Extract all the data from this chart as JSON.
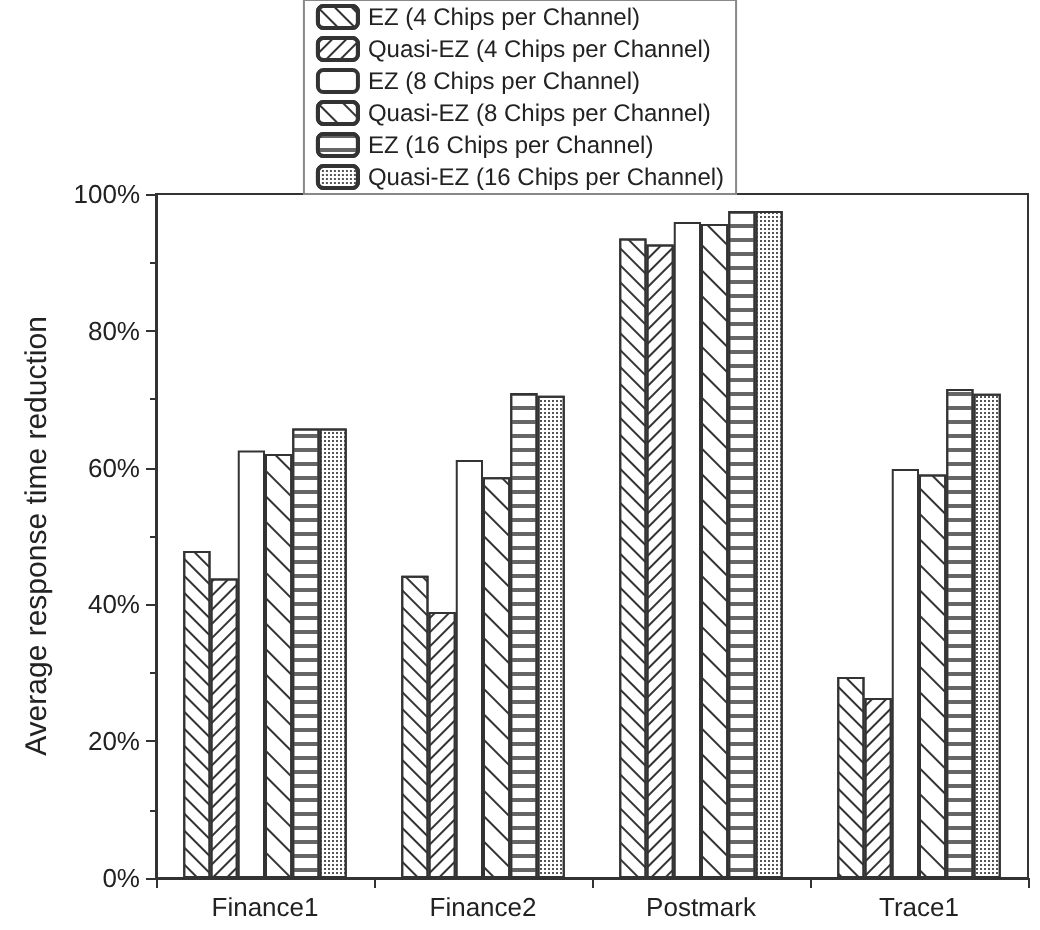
{
  "chart_data": {
    "type": "bar",
    "ylabel": "Average response time reduction",
    "categories": [
      "Finance1",
      "Finance2",
      "Postmark",
      "Trace1"
    ],
    "series": [
      {
        "name": "EZ (4 Chips per Channel)",
        "color": "#ffffff",
        "values": [
          47.8,
          44.2,
          93.5,
          29.4
        ]
      },
      {
        "name": "Quasi-EZ (4 Chips per Channel)",
        "color": "#ffffff",
        "values": [
          43.8,
          38.9,
          92.6,
          26.3
        ]
      },
      {
        "name": "EZ (8 Chips per Channel)",
        "color": "#ffffff",
        "values": [
          62.5,
          61.1,
          95.9,
          59.8
        ]
      },
      {
        "name": "Quasi-EZ (8 Chips per Channel)",
        "color": "#ffffff",
        "values": [
          62.0,
          58.6,
          95.6,
          59.0
        ]
      },
      {
        "name": "EZ (16 Chips per Channel)",
        "color": "#ffffff",
        "values": [
          65.7,
          70.9,
          97.5,
          71.5
        ]
      },
      {
        "name": "Quasi-EZ (16 Chips per Channel)",
        "color": "#ffffff",
        "values": [
          65.7,
          70.5,
          97.5,
          70.8
        ]
      }
    ],
    "ylim": [
      0,
      100
    ],
    "yticks": [
      {
        "value": 0,
        "label": "0%"
      },
      {
        "value": 20,
        "label": "20%"
      },
      {
        "value": 40,
        "label": "40%"
      },
      {
        "value": 60,
        "label": "60%"
      },
      {
        "value": 80,
        "label": "80%"
      },
      {
        "value": 100,
        "label": "100%"
      }
    ],
    "grid": false,
    "legend": "top"
  }
}
